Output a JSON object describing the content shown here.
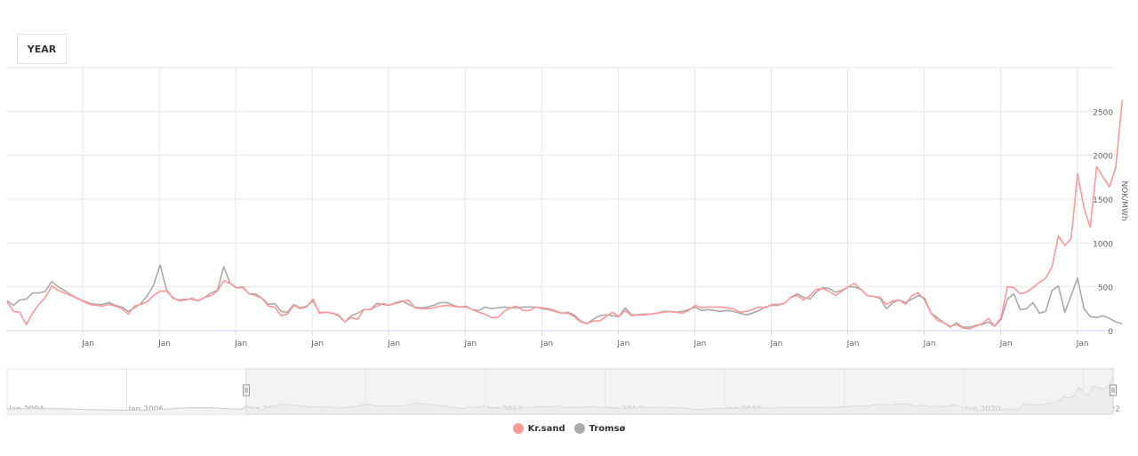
{
  "toolbar": {
    "period_button_label": "YEAR"
  },
  "colors": {
    "kr_sand": "#ff9999",
    "tromso": "#aaaaaa",
    "grid": "#e6e6e6",
    "axis": "#ccd6eb",
    "navigator_mask": "#f2f2f2"
  },
  "legend": {
    "items": [
      {
        "label": "Kr.sand",
        "color": "#ff9999"
      },
      {
        "label": "Tromsø",
        "color": "#aaaaaa"
      }
    ]
  },
  "navigator": {
    "labels": [
      "Jan 2004",
      "Jan 2006",
      "Jan 2008",
      "Jan 2010",
      "Jan 2012",
      "Jan 2014",
      "Jan 2016",
      "Jan 2018",
      "Jan 2020",
      "Jan 2022"
    ]
  },
  "chart_data": {
    "type": "line",
    "title": "",
    "xlabel": "",
    "ylabel": "NOK/MWh",
    "ylim": [
      0,
      3000
    ],
    "yticks": [
      0,
      500,
      1000,
      1500,
      2000,
      2500
    ],
    "xtick_labels": [
      "Jan",
      "Jan",
      "Jan",
      "Jan",
      "Jan",
      "Jan",
      "Jan",
      "Jan",
      "Jan",
      "Jan",
      "Jan",
      "Jan",
      "Jan",
      "Jan"
    ],
    "x_start": "2008-01",
    "x_interval": "monthly",
    "grid": true,
    "legend_position": "bottom-center",
    "series": [
      {
        "name": "Kr.sand",
        "color": "#ff9999",
        "values": [
          330,
          220,
          210,
          70,
          200,
          300,
          380,
          510,
          460,
          430,
          400,
          370,
          330,
          300,
          290,
          280,
          300,
          280,
          250,
          190,
          280,
          300,
          330,
          400,
          450,
          450,
          380,
          340,
          350,
          370,
          340,
          380,
          400,
          450,
          570,
          540,
          490,
          490,
          420,
          400,
          370,
          280,
          270,
          170,
          190,
          290,
          250,
          270,
          360,
          200,
          210,
          200,
          180,
          100,
          150,
          130,
          240,
          240,
          280,
          310,
          290,
          310,
          330,
          350,
          260,
          250,
          250,
          260,
          280,
          290,
          280,
          270,
          270,
          240,
          210,
          190,
          150,
          150,
          220,
          260,
          280,
          230,
          230,
          270,
          260,
          250,
          230,
          200,
          200,
          160,
          100,
          80,
          110,
          110,
          160,
          210,
          160,
          230,
          170,
          180,
          180,
          190,
          200,
          210,
          220,
          210,
          200,
          230,
          290,
          260,
          270,
          270,
          270,
          260,
          250,
          210,
          220,
          240,
          270,
          260,
          300,
          300,
          310,
          380,
          400,
          350,
          400,
          470,
          480,
          450,
          400,
          450,
          500,
          540,
          470,
          400,
          390,
          380,
          300,
          340,
          350,
          300,
          400,
          430,
          350,
          200,
          120,
          90,
          50,
          70,
          30,
          20,
          50,
          80,
          140,
          50,
          150,
          500,
          490,
          420,
          440,
          490,
          550,
          600,
          730,
          1080,
          970,
          1050,
          1790,
          1400,
          1180,
          1870,
          1750,
          1640,
          1860,
          2630
        ]
      },
      {
        "name": "Tromsø",
        "color": "#aaaaaa",
        "values": [
          340,
          290,
          350,
          360,
          430,
          430,
          450,
          560,
          500,
          460,
          410,
          370,
          340,
          310,
          300,
          300,
          320,
          290,
          270,
          220,
          260,
          310,
          400,
          520,
          750,
          470,
          370,
          350,
          360,
          360,
          340,
          380,
          430,
          460,
          730,
          540,
          490,
          500,
          420,
          420,
          370,
          300,
          310,
          220,
          210,
          300,
          260,
          280,
          340,
          210,
          210,
          200,
          170,
          100,
          170,
          200,
          240,
          240,
          310,
          300,
          290,
          320,
          340,
          300,
          270,
          260,
          270,
          290,
          320,
          320,
          290,
          270,
          280,
          240,
          230,
          270,
          250,
          260,
          270,
          260,
          260,
          270,
          270,
          270,
          250,
          240,
          220,
          200,
          210,
          180,
          110,
          80,
          130,
          170,
          180,
          170,
          160,
          260,
          180,
          180,
          190,
          190,
          200,
          220,
          220,
          210,
          220,
          240,
          270,
          230,
          240,
          230,
          220,
          230,
          220,
          200,
          180,
          200,
          230,
          270,
          290,
          290,
          310,
          380,
          420,
          380,
          360,
          440,
          490,
          480,
          440,
          460,
          500,
          500,
          470,
          400,
          390,
          370,
          250,
          320,
          350,
          320,
          360,
          400,
          370,
          200,
          150,
          90,
          40,
          90,
          40,
          40,
          60,
          70,
          100,
          50,
          130,
          360,
          420,
          240,
          250,
          320,
          200,
          220,
          460,
          510,
          210,
          400,
          600,
          250,
          160,
          150,
          170,
          140,
          100,
          80
        ]
      }
    ]
  }
}
